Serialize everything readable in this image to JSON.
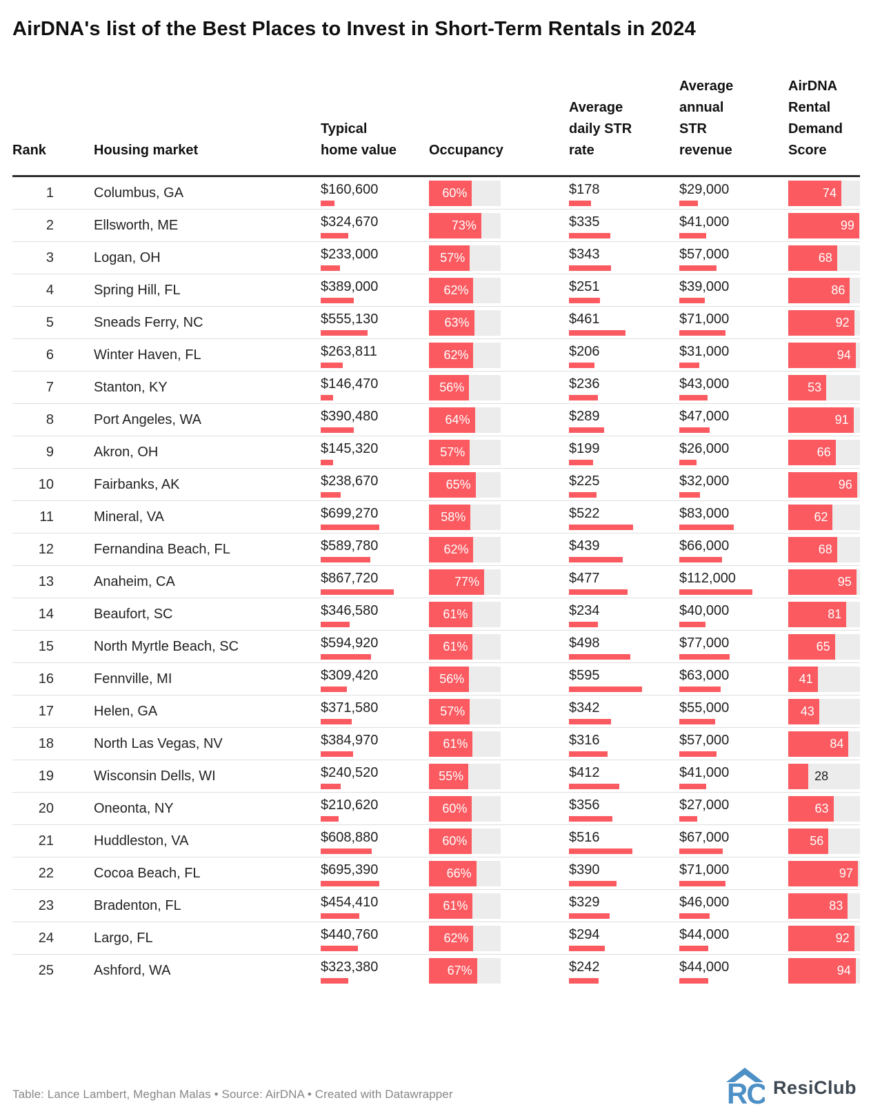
{
  "title": "AirDNA's list of the Best Places to Invest in Short-Term Rentals in 2024",
  "footer": {
    "text": "Table: Lance Lambert, Meghan Malas • Source: AirDNA • Created with Datawrapper"
  },
  "logo": {
    "text": "ResiClub",
    "icon": "resiclub-house-rc-icon"
  },
  "colors": {
    "bar_red": "#fa5a60",
    "bar_track": "#ececec",
    "header_rule": "#2e2e2e",
    "row_divider": "#dedede",
    "footer_text": "#878787",
    "logo_blue": "#4d90c5",
    "logo_text": "#3e4852"
  },
  "chart_data": {
    "type": "table",
    "title": "AirDNA's list of the Best Places to Invest in Short-Term Rentals in 2024",
    "columns": [
      "Rank",
      "Housing market",
      "Typical home value",
      "Occupancy",
      "Average daily STR rate",
      "Average annual STR revenue",
      "AirDNA Rental Demand Score"
    ],
    "bar_scales": {
      "home_value_max": 867720,
      "occupancy_max": 100,
      "daily_rate_max": 595,
      "annual_revenue_max": 112000,
      "demand_score_max": 100
    },
    "rows": [
      {
        "rank": 1,
        "market": "Columbus, GA",
        "home_value": "$160,600",
        "home_value_num": 160600,
        "occupancy_pct": 60,
        "occupancy_label": "60%",
        "daily_rate": "$178",
        "daily_rate_num": 178,
        "annual_revenue": "$29,000",
        "annual_revenue_num": 29000,
        "demand_score": 74
      },
      {
        "rank": 2,
        "market": "Ellsworth, ME",
        "home_value": "$324,670",
        "home_value_num": 324670,
        "occupancy_pct": 73,
        "occupancy_label": "73%",
        "daily_rate": "$335",
        "daily_rate_num": 335,
        "annual_revenue": "$41,000",
        "annual_revenue_num": 41000,
        "demand_score": 99
      },
      {
        "rank": 3,
        "market": "Logan, OH",
        "home_value": "$233,000",
        "home_value_num": 233000,
        "occupancy_pct": 57,
        "occupancy_label": "57%",
        "daily_rate": "$343",
        "daily_rate_num": 343,
        "annual_revenue": "$57,000",
        "annual_revenue_num": 57000,
        "demand_score": 68
      },
      {
        "rank": 4,
        "market": "Spring Hill, FL",
        "home_value": "$389,000",
        "home_value_num": 389000,
        "occupancy_pct": 62,
        "occupancy_label": "62%",
        "daily_rate": "$251",
        "daily_rate_num": 251,
        "annual_revenue": "$39,000",
        "annual_revenue_num": 39000,
        "demand_score": 86
      },
      {
        "rank": 5,
        "market": "Sneads Ferry, NC",
        "home_value": "$555,130",
        "home_value_num": 555130,
        "occupancy_pct": 63,
        "occupancy_label": "63%",
        "daily_rate": "$461",
        "daily_rate_num": 461,
        "annual_revenue": "$71,000",
        "annual_revenue_num": 71000,
        "demand_score": 92
      },
      {
        "rank": 6,
        "market": "Winter Haven, FL",
        "home_value": "$263,811",
        "home_value_num": 263811,
        "occupancy_pct": 62,
        "occupancy_label": "62%",
        "daily_rate": "$206",
        "daily_rate_num": 206,
        "annual_revenue": "$31,000",
        "annual_revenue_num": 31000,
        "demand_score": 94
      },
      {
        "rank": 7,
        "market": "Stanton, KY",
        "home_value": "$146,470",
        "home_value_num": 146470,
        "occupancy_pct": 56,
        "occupancy_label": "56%",
        "daily_rate": "$236",
        "daily_rate_num": 236,
        "annual_revenue": "$43,000",
        "annual_revenue_num": 43000,
        "demand_score": 53
      },
      {
        "rank": 8,
        "market": "Port Angeles, WA",
        "home_value": "$390,480",
        "home_value_num": 390480,
        "occupancy_pct": 64,
        "occupancy_label": "64%",
        "daily_rate": "$289",
        "daily_rate_num": 289,
        "annual_revenue": "$47,000",
        "annual_revenue_num": 47000,
        "demand_score": 91
      },
      {
        "rank": 9,
        "market": "Akron, OH",
        "home_value": "$145,320",
        "home_value_num": 145320,
        "occupancy_pct": 57,
        "occupancy_label": "57%",
        "daily_rate": "$199",
        "daily_rate_num": 199,
        "annual_revenue": "$26,000",
        "annual_revenue_num": 26000,
        "demand_score": 66
      },
      {
        "rank": 10,
        "market": "Fairbanks, AK",
        "home_value": "$238,670",
        "home_value_num": 238670,
        "occupancy_pct": 65,
        "occupancy_label": "65%",
        "daily_rate": "$225",
        "daily_rate_num": 225,
        "annual_revenue": "$32,000",
        "annual_revenue_num": 32000,
        "demand_score": 96
      },
      {
        "rank": 11,
        "market": "Mineral, VA",
        "home_value": "$699,270",
        "home_value_num": 699270,
        "occupancy_pct": 58,
        "occupancy_label": "58%",
        "daily_rate": "$522",
        "daily_rate_num": 522,
        "annual_revenue": "$83,000",
        "annual_revenue_num": 83000,
        "demand_score": 62
      },
      {
        "rank": 12,
        "market": "Fernandina Beach, FL",
        "home_value": "$589,780",
        "home_value_num": 589780,
        "occupancy_pct": 62,
        "occupancy_label": "62%",
        "daily_rate": "$439",
        "daily_rate_num": 439,
        "annual_revenue": "$66,000",
        "annual_revenue_num": 66000,
        "demand_score": 68
      },
      {
        "rank": 13,
        "market": "Anaheim, CA",
        "home_value": "$867,720",
        "home_value_num": 867720,
        "occupancy_pct": 77,
        "occupancy_label": "77%",
        "daily_rate": "$477",
        "daily_rate_num": 477,
        "annual_revenue": "$112,000",
        "annual_revenue_num": 112000,
        "demand_score": 95
      },
      {
        "rank": 14,
        "market": "Beaufort, SC",
        "home_value": "$346,580",
        "home_value_num": 346580,
        "occupancy_pct": 61,
        "occupancy_label": "61%",
        "daily_rate": "$234",
        "daily_rate_num": 234,
        "annual_revenue": "$40,000",
        "annual_revenue_num": 40000,
        "demand_score": 81
      },
      {
        "rank": 15,
        "market": "North Myrtle Beach, SC",
        "home_value": "$594,920",
        "home_value_num": 594920,
        "occupancy_pct": 61,
        "occupancy_label": "61%",
        "daily_rate": "$498",
        "daily_rate_num": 498,
        "annual_revenue": "$77,000",
        "annual_revenue_num": 77000,
        "demand_score": 65
      },
      {
        "rank": 16,
        "market": "Fennville, MI",
        "home_value": "$309,420",
        "home_value_num": 309420,
        "occupancy_pct": 56,
        "occupancy_label": "56%",
        "daily_rate": "$595",
        "daily_rate_num": 595,
        "annual_revenue": "$63,000",
        "annual_revenue_num": 63000,
        "demand_score": 41
      },
      {
        "rank": 17,
        "market": "Helen, GA",
        "home_value": "$371,580",
        "home_value_num": 371580,
        "occupancy_pct": 57,
        "occupancy_label": "57%",
        "daily_rate": "$342",
        "daily_rate_num": 342,
        "annual_revenue": "$55,000",
        "annual_revenue_num": 55000,
        "demand_score": 43
      },
      {
        "rank": 18,
        "market": "North Las Vegas, NV",
        "home_value": "$384,970",
        "home_value_num": 384970,
        "occupancy_pct": 61,
        "occupancy_label": "61%",
        "daily_rate": "$316",
        "daily_rate_num": 316,
        "annual_revenue": "$57,000",
        "annual_revenue_num": 57000,
        "demand_score": 84
      },
      {
        "rank": 19,
        "market": "Wisconsin Dells, WI",
        "home_value": "$240,520",
        "home_value_num": 240520,
        "occupancy_pct": 55,
        "occupancy_label": "55%",
        "daily_rate": "$412",
        "daily_rate_num": 412,
        "annual_revenue": "$41,000",
        "annual_revenue_num": 41000,
        "demand_score": 28
      },
      {
        "rank": 20,
        "market": "Oneonta, NY",
        "home_value": "$210,620",
        "home_value_num": 210620,
        "occupancy_pct": 60,
        "occupancy_label": "60%",
        "daily_rate": "$356",
        "daily_rate_num": 356,
        "annual_revenue": "$27,000",
        "annual_revenue_num": 27000,
        "demand_score": 63
      },
      {
        "rank": 21,
        "market": "Huddleston, VA",
        "home_value": "$608,880",
        "home_value_num": 608880,
        "occupancy_pct": 60,
        "occupancy_label": "60%",
        "daily_rate": "$516",
        "daily_rate_num": 516,
        "annual_revenue": "$67,000",
        "annual_revenue_num": 67000,
        "demand_score": 56
      },
      {
        "rank": 22,
        "market": "Cocoa Beach, FL",
        "home_value": "$695,390",
        "home_value_num": 695390,
        "occupancy_pct": 66,
        "occupancy_label": "66%",
        "daily_rate": "$390",
        "daily_rate_num": 390,
        "annual_revenue": "$71,000",
        "annual_revenue_num": 71000,
        "demand_score": 97
      },
      {
        "rank": 23,
        "market": "Bradenton, FL",
        "home_value": "$454,410",
        "home_value_num": 454410,
        "occupancy_pct": 61,
        "occupancy_label": "61%",
        "daily_rate": "$329",
        "daily_rate_num": 329,
        "annual_revenue": "$46,000",
        "annual_revenue_num": 46000,
        "demand_score": 83
      },
      {
        "rank": 24,
        "market": "Largo, FL",
        "home_value": "$440,760",
        "home_value_num": 440760,
        "occupancy_pct": 62,
        "occupancy_label": "62%",
        "daily_rate": "$294",
        "daily_rate_num": 294,
        "annual_revenue": "$44,000",
        "annual_revenue_num": 44000,
        "demand_score": 92
      },
      {
        "rank": 25,
        "market": "Ashford, WA",
        "home_value": "$323,380",
        "home_value_num": 323380,
        "occupancy_pct": 67,
        "occupancy_label": "67%",
        "daily_rate": "$242",
        "daily_rate_num": 242,
        "annual_revenue": "$44,000",
        "annual_revenue_num": 44000,
        "demand_score": 94
      }
    ]
  }
}
